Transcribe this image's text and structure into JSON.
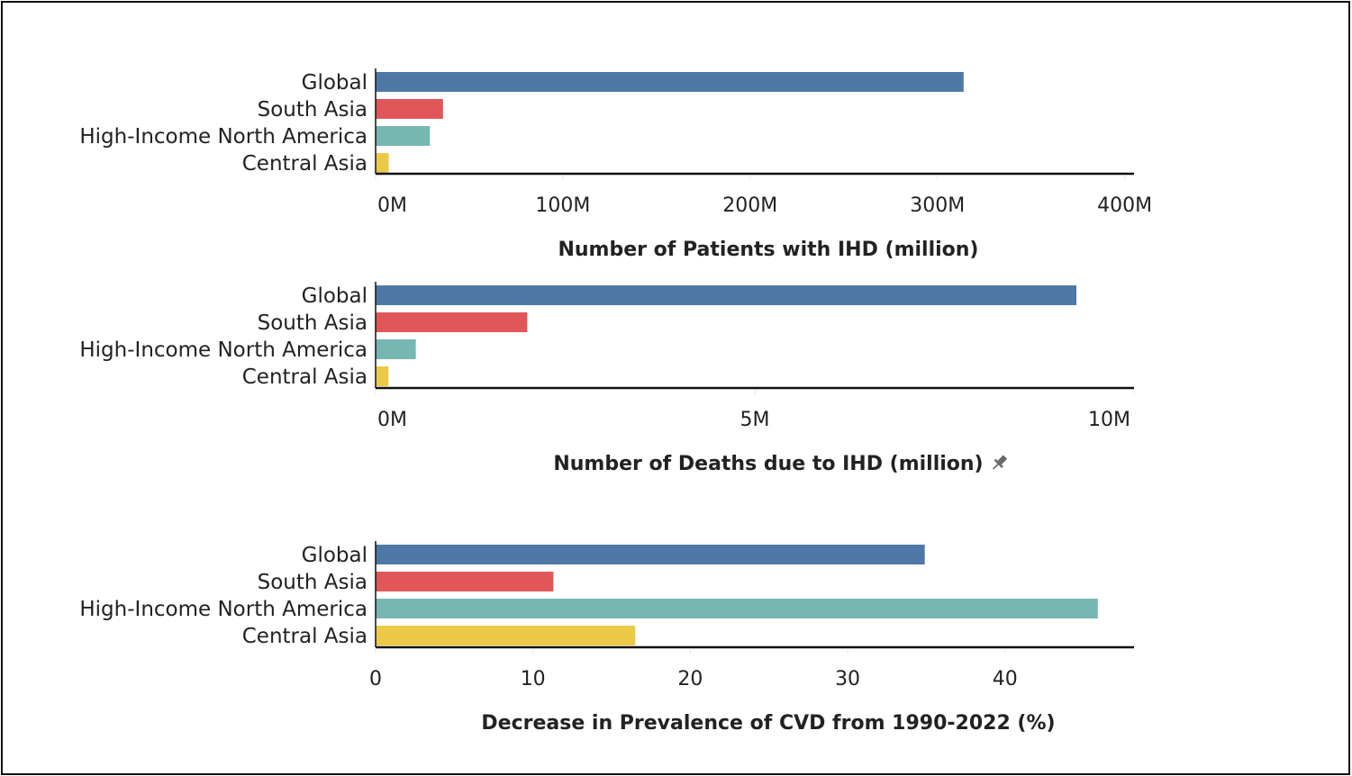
{
  "chart_data": [
    {
      "type": "bar",
      "orientation": "horizontal",
      "title": "",
      "xlabel": "Number of Patients with IHD (million)",
      "ylabel": "",
      "categories": [
        "Global",
        "South Asia",
        "High-Income North America",
        "Central Asia"
      ],
      "values": [
        314,
        36,
        29,
        7
      ],
      "unit": "M",
      "xlim": [
        0,
        405
      ],
      "ticks": [
        0,
        100,
        200,
        300,
        400
      ],
      "tick_labels": [
        "0M",
        "100M",
        "200M",
        "300M",
        "400M"
      ],
      "grid": false
    },
    {
      "type": "bar",
      "orientation": "horizontal",
      "title": "",
      "xlabel": "Number of Deaths due to IHD (million)",
      "xlabel_icon": "pin-icon",
      "ylabel": "",
      "categories": [
        "Global",
        "South Asia",
        "High-Income North America",
        "Central Asia"
      ],
      "values": [
        9.24,
        2.0,
        0.53,
        0.17
      ],
      "unit": "M",
      "xlim": [
        0,
        10
      ],
      "ticks": [
        0,
        5,
        10
      ],
      "tick_labels": [
        "0M",
        "5M",
        "10M"
      ],
      "grid": false
    },
    {
      "type": "bar",
      "orientation": "horizontal",
      "title": "",
      "xlabel": "Decrease in Prevalence of CVD from 1990-2022 (%)",
      "ylabel": "",
      "categories": [
        "Global",
        "South Asia",
        "High-Income North America",
        "Central Asia"
      ],
      "values": [
        34.9,
        11.3,
        45.9,
        16.5
      ],
      "unit": "%",
      "xlim": [
        0,
        48.2
      ],
      "ticks": [
        0,
        10,
        20,
        30,
        40
      ],
      "tick_labels": [
        "0",
        "10",
        "20",
        "30",
        "40"
      ],
      "grid": false
    }
  ],
  "colors": {
    "Global": "#4e79a7",
    "South Asia": "#e15759",
    "High-Income North America": "#76b7b2",
    "Central Asia": "#edc948"
  }
}
